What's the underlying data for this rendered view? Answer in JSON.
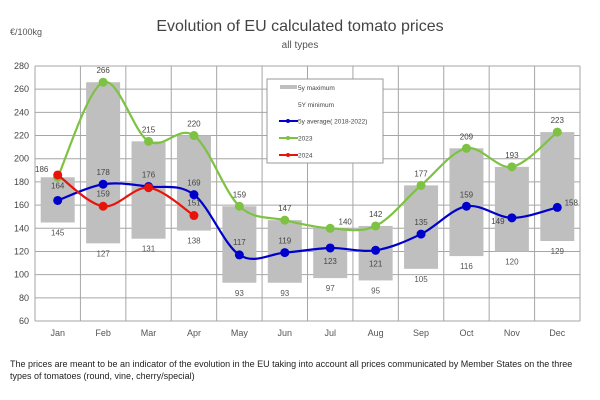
{
  "chart_data": {
    "type": "line",
    "title": "Evolution of EU calculated tomato prices",
    "subtitle": "all types",
    "ylabel": "€/100kg",
    "ylim": [
      60,
      280
    ],
    "yticks": [
      60,
      80,
      100,
      120,
      140,
      160,
      180,
      200,
      220,
      240,
      260,
      280
    ],
    "grid": true,
    "legend_placement": "top-center",
    "categories": [
      "Jan",
      "Feb",
      "Mar",
      "Apr",
      "May",
      "Jun",
      "Jul",
      "Aug",
      "Sep",
      "Oct",
      "Nov",
      "Dec"
    ],
    "range": {
      "max_name": "5y maximum",
      "min_name": "5Y minimum",
      "max": [
        184,
        266,
        215,
        220,
        159,
        147,
        140,
        142,
        177,
        209,
        193,
        223
      ],
      "min": [
        145,
        127,
        131,
        138,
        93,
        93,
        97,
        95,
        105,
        116,
        120,
        129
      ],
      "color": "#bfbfbf"
    },
    "series": [
      {
        "name": "5y average( 2018-2022)",
        "color": "#0000cc",
        "values": [
          164,
          178,
          176,
          169,
          117,
          119,
          123,
          121,
          135,
          159,
          149,
          158
        ],
        "data_labels": [
          "164",
          "178",
          "176",
          "169",
          "117",
          "119",
          "123",
          "121",
          "135",
          "159",
          "149",
          "158"
        ]
      },
      {
        "name": "2023",
        "color": "#7dc242",
        "values": [
          184,
          266,
          215,
          220,
          159,
          147,
          140,
          142,
          177,
          209,
          193,
          223
        ],
        "data_labels": [
          null,
          "266",
          "215",
          "220",
          "159",
          "147",
          "140",
          "142",
          "177",
          "209",
          "193",
          "223"
        ]
      },
      {
        "name": "2024",
        "color": "#e8140c",
        "values": [
          186,
          159,
          175,
          151,
          null,
          null,
          null,
          null,
          null,
          null,
          null,
          null
        ],
        "data_labels": [
          "186",
          "159",
          null,
          "151",
          null,
          null,
          null,
          null,
          null,
          null,
          null,
          null
        ]
      }
    ]
  },
  "footnote": "The prices are meant to be an indicator of the evolution in the EU taking into account all prices communicated by Member States on the three types of tomatoes (round, vine, cherry/special)"
}
